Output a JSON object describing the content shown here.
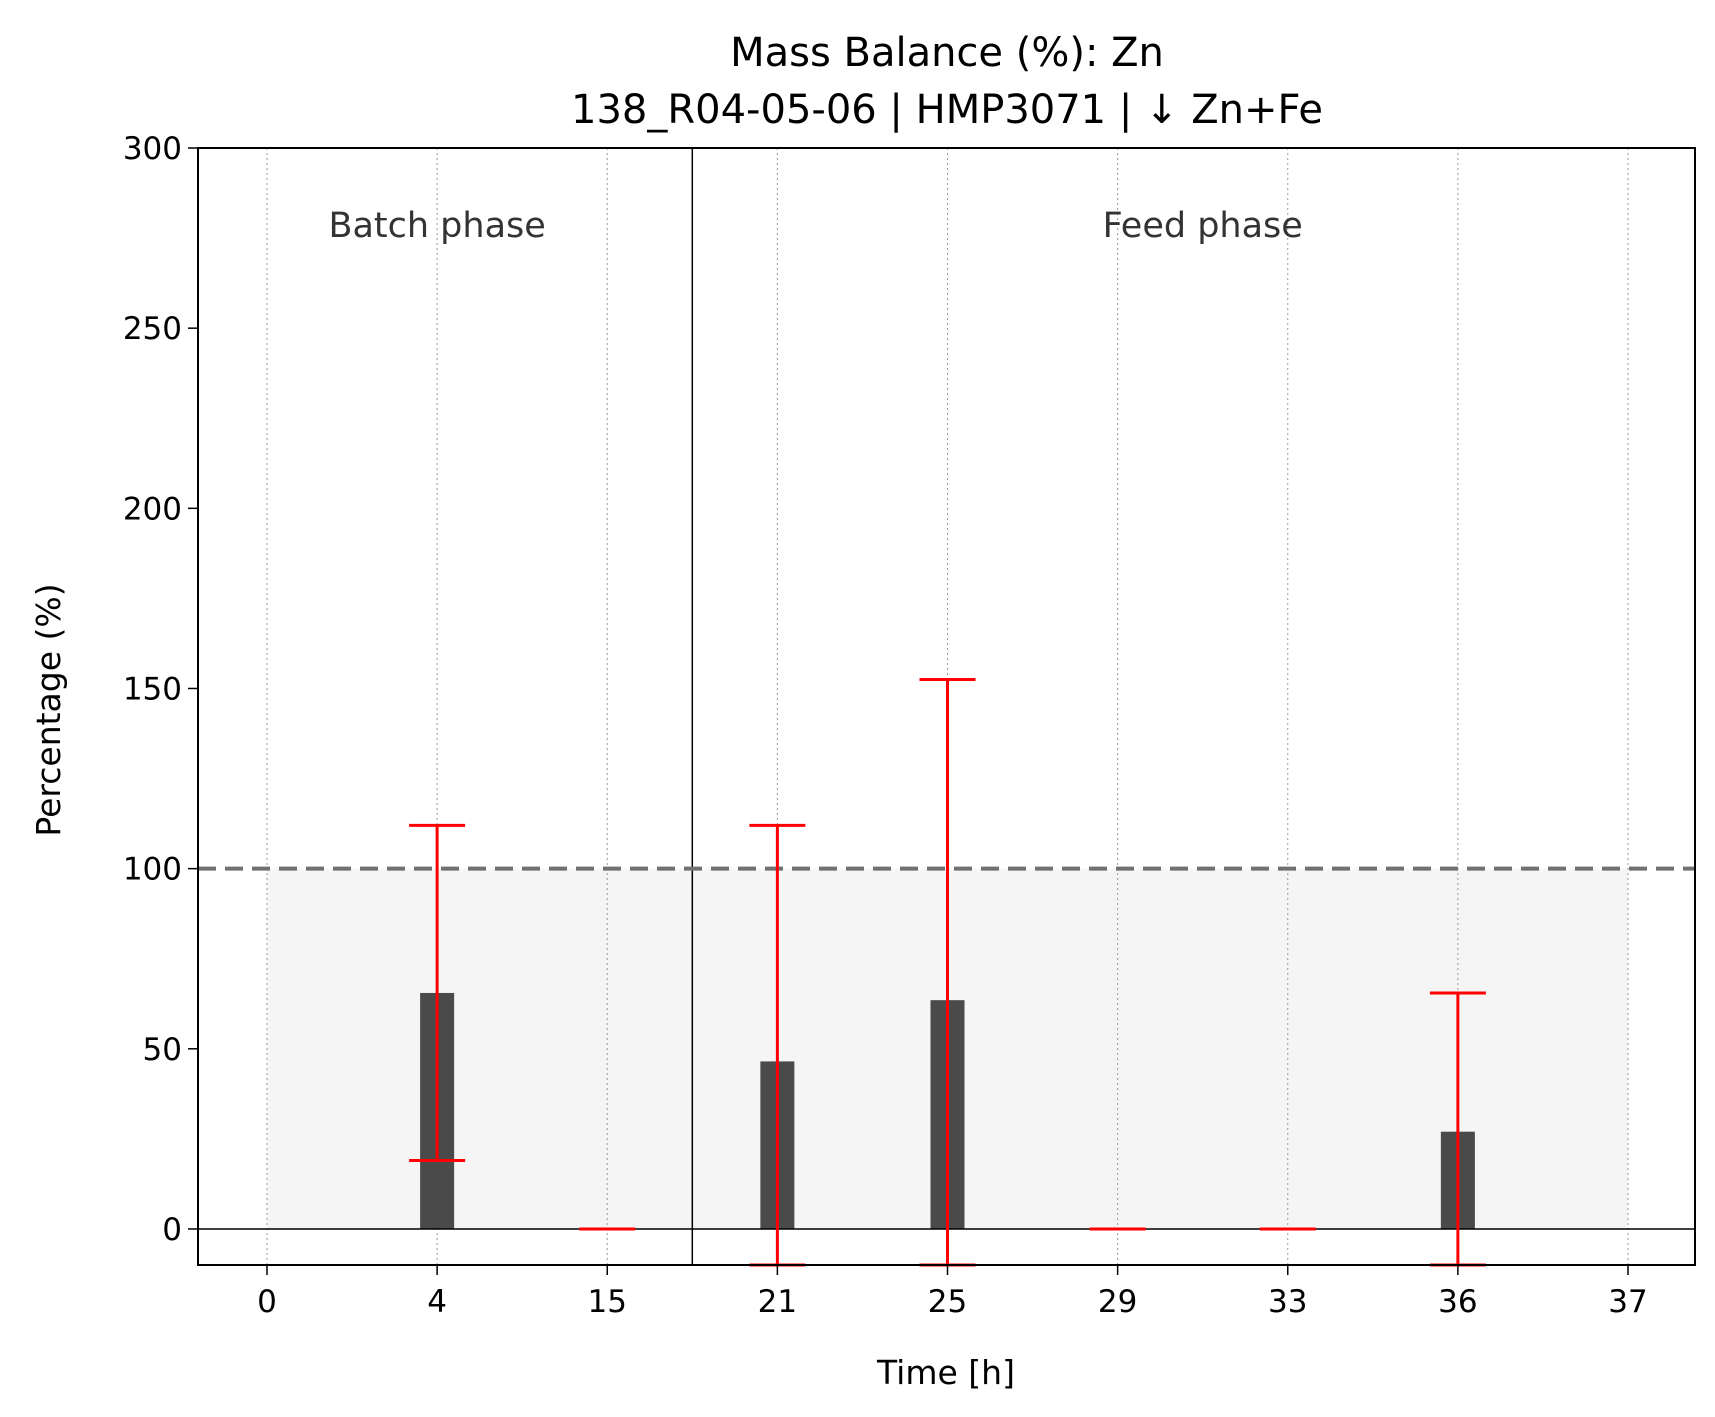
{
  "chart_data": {
    "type": "bar",
    "title": "Mass Balance (%): Zn",
    "subtitle": "138_R04-05-06 | HMP3071 | ↓ Zn+Fe",
    "xlabel": "Time [h]",
    "ylabel": "Percentage (%)",
    "ylim": [
      -10,
      300
    ],
    "yticks": [
      0,
      50,
      100,
      150,
      200,
      250,
      300
    ],
    "categories": [
      "0",
      "4",
      "15",
      "21",
      "25",
      "29",
      "33",
      "36",
      "37"
    ],
    "values": [
      0,
      65.5,
      0,
      46.5,
      63.5,
      0,
      0,
      27,
      0
    ],
    "error_low": [
      null,
      19,
      0,
      -10,
      -10,
      0,
      0,
      -10,
      null
    ],
    "error_high": [
      null,
      112,
      0,
      112,
      152.5,
      0,
      0,
      65.5,
      null
    ],
    "reference_line": {
      "value": 100,
      "style": "dashed"
    },
    "shaded_band": {
      "from": 0,
      "to": 100
    },
    "phases": [
      {
        "label": "Batch phase",
        "categories": [
          "0",
          "4",
          "15"
        ]
      },
      {
        "label": "Feed phase",
        "categories": [
          "21",
          "25",
          "29",
          "33",
          "36",
          "37"
        ]
      }
    ],
    "grid": "x-dotted",
    "colors": {
      "bar": "#4a4a4a",
      "error": "#ff0000",
      "reference": "#707070",
      "band": "#f5f5f5"
    }
  }
}
